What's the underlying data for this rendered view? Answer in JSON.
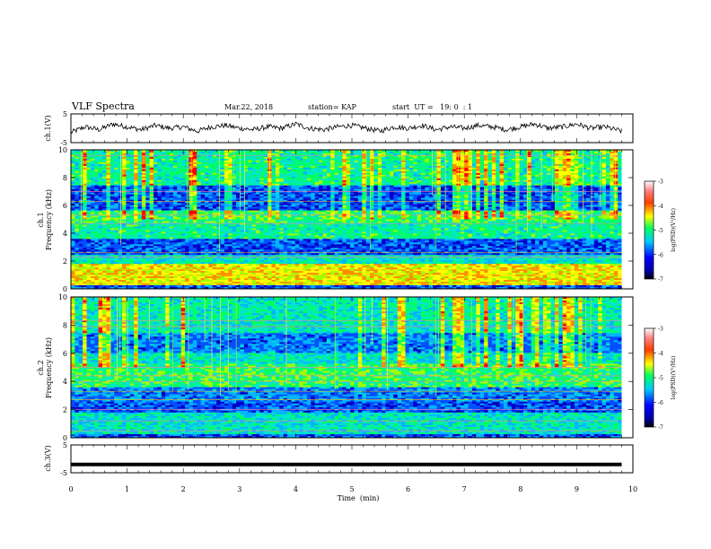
{
  "header": {
    "title": "VLF Spectra",
    "date": "Mar.22, 2018",
    "station": "station= KAP",
    "start": "start  UT =   19: 0  : 1"
  },
  "chart_data": [
    {
      "type": "line",
      "panel": "ch1_waveform",
      "ylabel": "ch.1(V)",
      "ylim": [
        -5,
        5
      ],
      "yticks": [
        "5",
        "-5"
      ],
      "xlim": [
        0,
        10
      ],
      "series": [
        {
          "color": "#000000",
          "x": [
            0,
            0.25,
            0.5,
            0.75,
            1,
            1.25,
            1.5,
            1.75,
            2,
            2.25,
            2.5,
            2.75,
            3,
            3.25,
            3.5,
            3.75,
            4,
            4.25,
            4.5,
            4.75,
            5,
            5.25,
            5.5,
            5.75,
            6,
            6.25,
            6.5,
            6.75,
            7,
            7.25,
            7.5,
            7.75,
            8,
            8.25,
            8.5,
            8.75,
            9,
            9.25,
            9.5,
            9.8
          ],
          "y": [
            -1.5,
            0.5,
            -0.5,
            1.5,
            0.5,
            -0.5,
            1,
            0,
            0.5,
            -1,
            0.5,
            1,
            0,
            -0.5,
            0.5,
            0,
            1.5,
            0,
            -0.5,
            0.5,
            1,
            0,
            -1,
            0.5,
            0,
            1,
            -0.5,
            0.5,
            0,
            1,
            0.5,
            -0.5,
            0.5,
            1.5,
            0,
            0.5,
            1.5,
            0,
            0.5,
            -1
          ]
        }
      ]
    },
    {
      "type": "heatmap",
      "panel": "ch1_spectrogram",
      "ylabel": "ch.1\nFrequency  (kHz)",
      "ylim": [
        0,
        10
      ],
      "yticks": [
        "0",
        "2",
        "4",
        "6",
        "8",
        "10"
      ],
      "xlim": [
        0,
        10
      ],
      "colorbar": {
        "label": "log(PSD)(V²/Hz)",
        "range": [
          -7,
          -3
        ],
        "ticks": [
          "-3",
          "-4",
          "-5",
          "-6",
          "-7"
        ]
      }
    },
    {
      "type": "heatmap",
      "panel": "ch2_spectrogram",
      "ylabel": "ch.2\nFrequency  (kHz)",
      "ylim": [
        0,
        10
      ],
      "yticks": [
        "0",
        "2",
        "4",
        "6",
        "8",
        "10"
      ],
      "xlim": [
        0,
        10
      ],
      "colorbar": {
        "label": "log(PSD)(V²/Hz)",
        "range": [
          -7,
          -3
        ],
        "ticks": [
          "-3",
          "-4",
          "-5",
          "-6",
          "-7"
        ]
      }
    },
    {
      "type": "line",
      "panel": "ch3_waveform",
      "ylabel": "ch.3(V)",
      "ylim": [
        -5,
        5
      ],
      "yticks": [
        "5",
        "-5"
      ],
      "xlim": [
        0,
        10
      ],
      "series": [
        {
          "color": "#000000",
          "x": [
            0,
            9.8
          ],
          "y": [
            -2,
            -2
          ]
        }
      ]
    }
  ],
  "xaxis": {
    "label": "Time  (min)",
    "ticks": [
      "0",
      "1",
      "2",
      "3",
      "4",
      "5",
      "6",
      "7",
      "8",
      "9",
      "10"
    ]
  },
  "colors": {
    "cmap": [
      "#000080",
      "#0000ff",
      "#00c8ff",
      "#00ff80",
      "#ffff00",
      "#ff8000",
      "#ff0000"
    ]
  }
}
